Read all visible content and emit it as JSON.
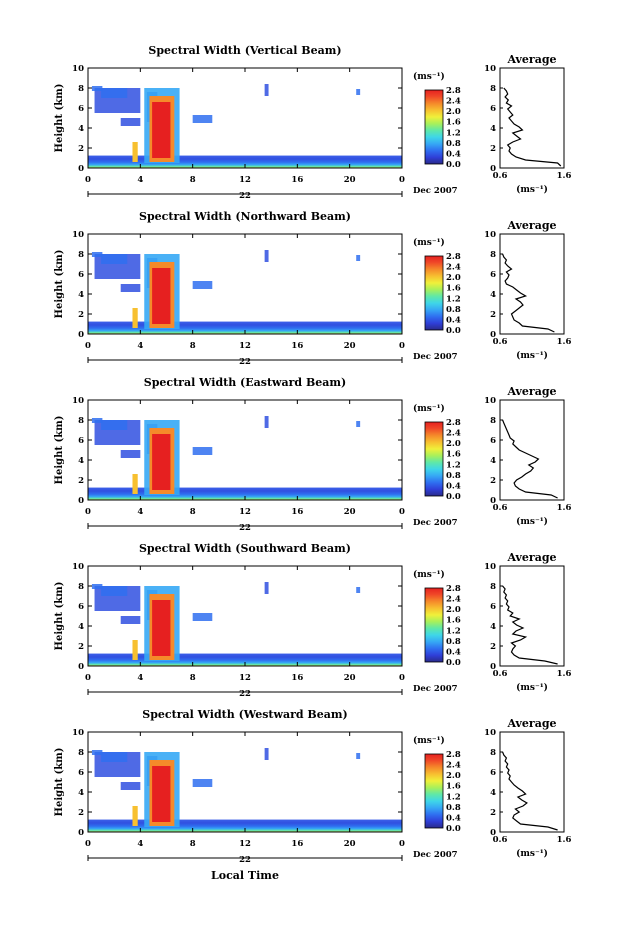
{
  "colorbar_stops": [
    "#2a2a8a",
    "#2f3fd8",
    "#2f6ff0",
    "#36a8f5",
    "#3fd6e8",
    "#5fe8a8",
    "#a8f05a",
    "#f0f03a",
    "#f7c030",
    "#f58a2a",
    "#f04a28",
    "#e62020"
  ],
  "chart_data": [
    {
      "type": "heatmap",
      "title": "Spectral Width (Vertical Beam)",
      "ylabel": "Height (km)",
      "x_ticks": [
        "0",
        "4",
        "8",
        "12",
        "16",
        "20",
        "0"
      ],
      "y_ticks": [
        "0",
        "2",
        "4",
        "6",
        "8",
        "10"
      ],
      "xlim": [
        0,
        24
      ],
      "ylim": [
        0,
        10
      ],
      "date_day": "22",
      "date_label": "Dec 2007",
      "colorbar": {
        "label": "(ms⁻¹)",
        "ticks": [
          "0.0",
          "0.4",
          "0.8",
          "1.2",
          "1.6",
          "2.0",
          "2.4",
          "2.8"
        ],
        "range": [
          0,
          2.8
        ]
      },
      "profile": {
        "title": "Average",
        "xlabel": "(ms⁻¹)",
        "x_ticks": [
          "0.6",
          "1.6"
        ],
        "xlim": [
          0.6,
          1.6
        ],
        "ylim": [
          0,
          10
        ],
        "y_ticks": [
          "0",
          "2",
          "4",
          "6",
          "8",
          "10"
        ],
        "height": [
          0.2,
          0.5,
          0.8,
          1.1,
          1.4,
          1.7,
          2.0,
          2.3,
          2.6,
          2.9,
          3.2,
          3.5,
          3.8,
          4.1,
          4.4,
          4.7,
          5.0,
          5.3,
          5.6,
          5.9,
          6.2,
          6.5,
          6.8,
          7.1,
          7.4,
          7.7,
          8.0
        ],
        "width": [
          1.55,
          1.5,
          1.0,
          0.85,
          0.78,
          0.74,
          0.76,
          0.72,
          0.8,
          0.92,
          0.86,
          0.8,
          0.95,
          0.9,
          0.82,
          0.78,
          0.74,
          0.8,
          0.76,
          0.72,
          0.78,
          0.7,
          0.73,
          0.68,
          0.72,
          0.7,
          0.66
        ]
      }
    },
    {
      "type": "heatmap",
      "title": "Spectral Width (Northward Beam)",
      "ylabel": "Height (km)",
      "x_ticks": [
        "0",
        "4",
        "8",
        "12",
        "16",
        "20",
        "0"
      ],
      "y_ticks": [
        "0",
        "2",
        "4",
        "6",
        "8",
        "10"
      ],
      "xlim": [
        0,
        24
      ],
      "ylim": [
        0,
        10
      ],
      "date_day": "22",
      "date_label": "Dec 2007",
      "colorbar": {
        "label": "(ms⁻¹)",
        "ticks": [
          "0.0",
          "0.4",
          "0.8",
          "1.2",
          "1.6",
          "2.0",
          "2.4",
          "2.8"
        ],
        "range": [
          0,
          2.8
        ]
      },
      "profile": {
        "title": "Average",
        "xlabel": "(ms⁻¹)",
        "x_ticks": [
          "0.6",
          "1.6"
        ],
        "xlim": [
          0.6,
          1.6
        ],
        "ylim": [
          0,
          10
        ],
        "y_ticks": [
          "0",
          "2",
          "4",
          "6",
          "8",
          "10"
        ],
        "height": [
          0.2,
          0.5,
          0.8,
          1.1,
          1.4,
          1.7,
          2.0,
          2.3,
          2.6,
          2.9,
          3.2,
          3.5,
          3.8,
          4.1,
          4.4,
          4.7,
          5.0,
          5.3,
          5.6,
          5.9,
          6.2,
          6.5,
          6.8,
          7.1,
          7.4,
          7.7,
          8.0
        ],
        "width": [
          1.45,
          1.35,
          0.95,
          0.9,
          0.82,
          0.8,
          0.78,
          0.84,
          0.9,
          0.96,
          0.92,
          0.85,
          1.0,
          0.92,
          0.86,
          0.8,
          0.7,
          0.68,
          0.72,
          0.74,
          0.7,
          0.78,
          0.72,
          0.68,
          0.7,
          0.66,
          0.64
        ]
      }
    },
    {
      "type": "heatmap",
      "title": "Spectral Width (Eastward Beam)",
      "ylabel": "Height (km)",
      "x_ticks": [
        "0",
        "4",
        "8",
        "12",
        "16",
        "20",
        "0"
      ],
      "y_ticks": [
        "0",
        "2",
        "4",
        "6",
        "8",
        "10"
      ],
      "xlim": [
        0,
        24
      ],
      "ylim": [
        0,
        10
      ],
      "date_day": "22",
      "date_label": "Dec 2007",
      "colorbar": {
        "label": "(ms⁻¹)",
        "ticks": [
          "0.0",
          "0.4",
          "0.8",
          "1.2",
          "1.6",
          "2.0",
          "2.4",
          "2.8"
        ],
        "range": [
          0,
          2.8
        ]
      },
      "profile": {
        "title": "Average",
        "xlabel": "(ms⁻¹)",
        "x_ticks": [
          "0.6",
          "1.6"
        ],
        "xlim": [
          0.6,
          1.6
        ],
        "ylim": [
          0,
          10
        ],
        "y_ticks": [
          "0",
          "2",
          "4",
          "6",
          "8",
          "10"
        ],
        "height": [
          0.2,
          0.5,
          0.8,
          1.1,
          1.4,
          1.7,
          2.0,
          2.3,
          2.6,
          2.9,
          3.2,
          3.5,
          3.8,
          4.1,
          4.4,
          4.7,
          5.0,
          5.3,
          5.6,
          5.9,
          6.2,
          6.5,
          6.8,
          7.1,
          7.4,
          7.7,
          8.0
        ],
        "width": [
          1.5,
          1.4,
          1.0,
          0.9,
          0.84,
          0.82,
          0.86,
          0.94,
          1.0,
          1.08,
          1.12,
          1.05,
          1.15,
          1.2,
          1.1,
          1.0,
          0.9,
          0.85,
          0.8,
          0.82,
          0.76,
          0.74,
          0.72,
          0.7,
          0.68,
          0.66,
          0.64
        ]
      }
    },
    {
      "type": "heatmap",
      "title": "Spectral Width (Southward Beam)",
      "ylabel": "Height (km)",
      "x_ticks": [
        "0",
        "4",
        "8",
        "12",
        "16",
        "20",
        "0"
      ],
      "y_ticks": [
        "0",
        "2",
        "4",
        "6",
        "8",
        "10"
      ],
      "xlim": [
        0,
        24
      ],
      "ylim": [
        0,
        10
      ],
      "date_day": "22",
      "date_label": "Dec 2007",
      "colorbar": {
        "label": "(ms⁻¹)",
        "ticks": [
          "0.0",
          "0.4",
          "0.8",
          "1.2",
          "1.6",
          "2.0",
          "2.4",
          "2.8"
        ],
        "range": [
          0,
          2.8
        ]
      },
      "profile": {
        "title": "Average",
        "xlabel": "(ms⁻¹)",
        "x_ticks": [
          "0.6",
          "1.6"
        ],
        "xlim": [
          0.6,
          1.6
        ],
        "ylim": [
          0,
          10
        ],
        "y_ticks": [
          "0",
          "2",
          "4",
          "6",
          "8",
          "10"
        ],
        "height": [
          0.2,
          0.5,
          0.8,
          1.1,
          1.4,
          1.7,
          2.0,
          2.3,
          2.6,
          2.9,
          3.2,
          3.5,
          3.8,
          4.1,
          4.4,
          4.7,
          5.0,
          5.3,
          5.6,
          5.9,
          6.2,
          6.5,
          6.8,
          7.1,
          7.4,
          7.7,
          8.0
        ],
        "width": [
          1.5,
          1.3,
          0.9,
          0.82,
          0.78,
          0.8,
          0.84,
          0.78,
          0.92,
          1.0,
          0.8,
          0.85,
          0.96,
          0.86,
          0.8,
          0.9,
          0.76,
          0.8,
          0.72,
          0.74,
          0.7,
          0.72,
          0.68,
          0.7,
          0.66,
          0.68,
          0.64
        ]
      }
    },
    {
      "type": "heatmap",
      "title": "Spectral Width (Westward Beam)",
      "ylabel": "Height (km)",
      "x_ticks": [
        "0",
        "4",
        "8",
        "12",
        "16",
        "20",
        "0"
      ],
      "y_ticks": [
        "0",
        "2",
        "4",
        "6",
        "8",
        "10"
      ],
      "xlim": [
        0,
        24
      ],
      "ylim": [
        0,
        10
      ],
      "date_day": "22",
      "date_label": "Dec 2007",
      "colorbar": {
        "label": "(ms⁻¹)",
        "ticks": [
          "0.0",
          "0.4",
          "0.8",
          "1.2",
          "1.6",
          "2.0",
          "2.4",
          "2.8"
        ],
        "range": [
          0,
          2.8
        ]
      },
      "profile": {
        "title": "Average",
        "xlabel": "(ms⁻¹)",
        "x_ticks": [
          "0.6",
          "1.6"
        ],
        "xlim": [
          0.6,
          1.6
        ],
        "ylim": [
          0,
          10
        ],
        "y_ticks": [
          "0",
          "2",
          "4",
          "6",
          "8",
          "10"
        ],
        "height": [
          0.2,
          0.5,
          0.8,
          1.1,
          1.4,
          1.7,
          2.0,
          2.3,
          2.6,
          2.9,
          3.2,
          3.5,
          3.8,
          4.1,
          4.4,
          4.7,
          5.0,
          5.3,
          5.6,
          5.9,
          6.2,
          6.5,
          6.8,
          7.1,
          7.4,
          7.7,
          8.0
        ],
        "width": [
          1.5,
          1.35,
          0.92,
          0.86,
          0.8,
          0.82,
          0.9,
          0.84,
          0.96,
          1.02,
          0.94,
          0.88,
          1.0,
          0.95,
          0.88,
          0.82,
          0.78,
          0.74,
          0.76,
          0.72,
          0.74,
          0.7,
          0.72,
          0.68,
          0.7,
          0.66,
          0.64
        ]
      }
    }
  ],
  "shared_xlabel": "Local Time"
}
